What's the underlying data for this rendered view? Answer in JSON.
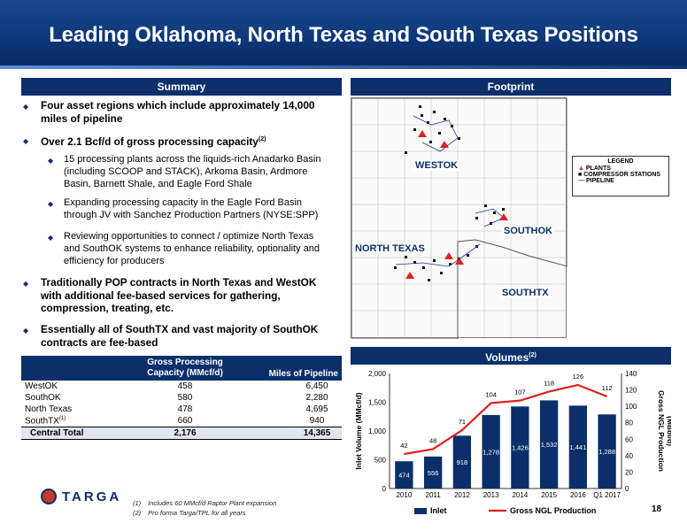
{
  "title": "Leading Oklahoma, North Texas and South Texas Positions",
  "headers": {
    "summary": "Summary",
    "footprint": "Footprint",
    "volumes": "Volumes",
    "volumes_sup": "(2)"
  },
  "bullets": [
    {
      "text": "Four asset regions which include approximately 14,000 miles of pipeline"
    },
    {
      "text": "Over 2.1 Bcf/d of gross processing capacity",
      "sup": "(2)"
    },
    {
      "text": "Traditionally POP contracts in North Texas and WestOK with additional fee-based services for gathering, compression, treating, etc."
    },
    {
      "text": "Essentially all of SouthTX and vast majority of SouthOK contracts are fee-based"
    }
  ],
  "sub_bullets": [
    "15 processing plants across the liquids-rich Anadarko Basin (including SCOOP and STACK), Arkoma Basin, Ardmore Basin, Barnett Shale, and Eagle Ford Shale",
    "Expanding processing capacity in the Eagle Ford Basin through JV with Sanchez Production Partners (NYSE:SPP)",
    "Reviewing opportunities to connect / optimize North Texas and SouthOK systems to enhance reliability, optionality and efficiency for producers"
  ],
  "table": {
    "col1_header": "Gross Processing Capacity (MMcf/d)",
    "col2_header": "Miles of Pipeline",
    "rows": [
      {
        "name": "WestOK",
        "cap": "458",
        "miles": "6,450"
      },
      {
        "name": "SouthOK",
        "cap": "580",
        "miles": "2,280"
      },
      {
        "name": "North Texas",
        "cap": "478",
        "miles": "4,695"
      },
      {
        "name": "SouthTX",
        "sup": "(1)",
        "cap": "660",
        "miles": "940"
      }
    ],
    "total": {
      "name": "Central Total",
      "cap": "2,176",
      "miles": "14,365"
    }
  },
  "map": {
    "regions": [
      "WESTOK",
      "SOUTHOK",
      "NORTH TEXAS",
      "SOUTHTX"
    ],
    "legend_title": "LEGEND",
    "legend_items": [
      "PLANTS",
      "COMPRESSOR STATIONS",
      "PIPELINE"
    ]
  },
  "footnotes": [
    "Includes 60 MMcf/d Raptor Plant expansion",
    "Pro forma Targa/TPL for all years"
  ],
  "footnote_marks": [
    "(1)",
    "(2)"
  ],
  "logo_text": "TARGA",
  "page_number": "18",
  "colors": {
    "navy": "#0b2f6b",
    "bar": "#0b2f6b",
    "line": "#e02020",
    "plant": "#e02020"
  },
  "chart_data": {
    "type": "bar",
    "categories": [
      "2010",
      "2011",
      "2012",
      "2013",
      "2014",
      "2015",
      "2016",
      "Q1 2017"
    ],
    "series": [
      {
        "name": "Inlet",
        "axis": "left",
        "type": "bar",
        "values": [
          474,
          556,
          918,
          1278,
          1426,
          1532,
          1441,
          1288
        ],
        "labels": [
          "474",
          "556",
          "918",
          "1,278",
          "1,426",
          "1,532",
          "1,441",
          "1,288"
        ]
      },
      {
        "name": "Gross NGL Production",
        "axis": "right",
        "type": "line",
        "values": [
          42,
          48,
          71,
          104,
          107,
          118,
          126,
          112
        ],
        "labels": [
          "42",
          "48",
          "71",
          "104",
          "107",
          "118",
          "126",
          "112"
        ]
      }
    ],
    "ylabel": "Inlet Volume (MMcf/d)",
    "y2label": "Gross NGL Production (MBbl/d)",
    "ylim": [
      0,
      2000
    ],
    "y2lim": [
      0,
      140
    ],
    "yticks": [
      "0",
      "500",
      "1,000",
      "1,500",
      "2,000"
    ],
    "y2ticks": [
      "0",
      "20",
      "40",
      "60",
      "80",
      "100",
      "120",
      "140"
    ],
    "legend": "bottom"
  }
}
